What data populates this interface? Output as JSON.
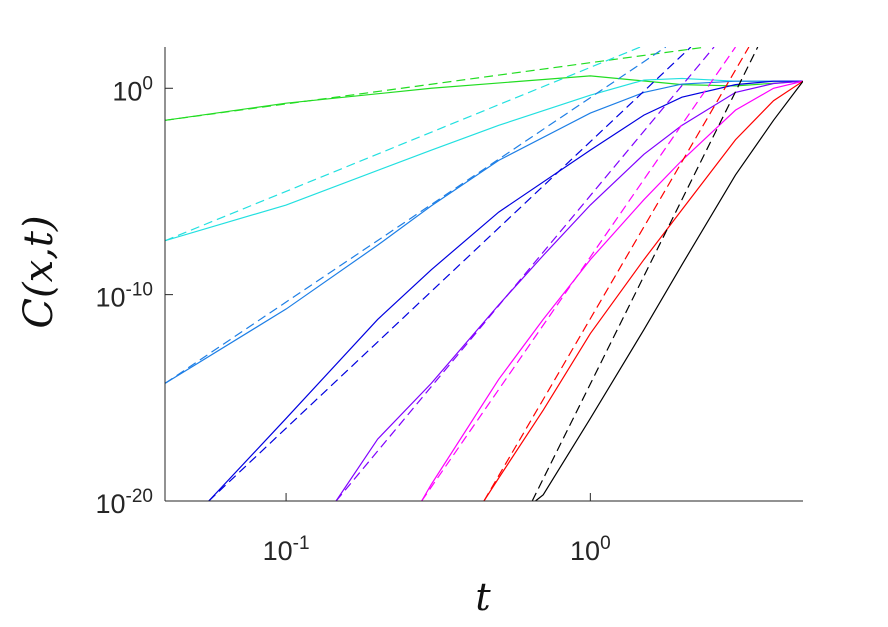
{
  "chart_data": {
    "type": "line",
    "xlabel": "t",
    "ylabel": "C(x,t)",
    "xscale": "log",
    "yscale": "log",
    "xlim": [
      0.04,
      5
    ],
    "ylim": [
      1e-20,
      100
    ],
    "xticks": [
      {
        "value": 0.1,
        "label": "10^-1"
      },
      {
        "value": 1,
        "label": "10^0"
      }
    ],
    "yticks": [
      {
        "value": 1e-20,
        "label": "10^-20"
      },
      {
        "value": 1e-10,
        "label": "10^-10"
      },
      {
        "value": 1,
        "label": "10^0"
      }
    ],
    "series": [
      {
        "color": "#22dd22",
        "line_style": "solid",
        "x": [
          0.04,
          0.1,
          0.3,
          1,
          2,
          3,
          5
        ],
        "values": [
          0.028,
          0.19,
          1,
          4,
          1.5,
          1.3,
          2.2
        ]
      },
      {
        "color": "#22e0e0",
        "line_style": "solid",
        "x": [
          0.04,
          0.1,
          0.3,
          0.5,
          1,
          1.5,
          2,
          3,
          5
        ],
        "values": [
          4.1e-08,
          2.2e-06,
          0.001,
          0.016,
          0.46,
          2.5,
          3,
          2.2,
          2.2
        ]
      },
      {
        "color": "#1e7fe6",
        "line_style": "solid",
        "x": [
          0.04,
          0.1,
          0.2,
          0.3,
          0.5,
          1,
          1.5,
          2,
          3,
          5
        ],
        "values": [
          5e-15,
          2e-11,
          2.5e-08,
          2e-06,
          0.00032,
          0.063,
          0.63,
          1.6,
          2.2,
          2.2
        ]
      },
      {
        "color": "#0000e0",
        "line_style": "solid",
        "x": [
          0.0557,
          0.1,
          0.2,
          0.3,
          0.5,
          1,
          1.5,
          2,
          3,
          4,
          5
        ],
        "values": [
          1e-20,
          1e-16,
          6.3e-12,
          1.6e-09,
          1e-06,
          0.001,
          0.05,
          0.37,
          1.5,
          2.2,
          2.2
        ]
      },
      {
        "color": "#8000ff",
        "line_style": "solid",
        "x": [
          0.146,
          0.2,
          0.3,
          0.5,
          0.7,
          1,
          1.5,
          2,
          3,
          4,
          5
        ],
        "values": [
          1e-20,
          1e-17,
          5e-15,
          3.2e-11,
          7.9e-09,
          2.2e-06,
          0.00063,
          0.016,
          0.63,
          1.7,
          2.2
        ]
      },
      {
        "color": "#ff00ff",
        "line_style": "solid",
        "x": [
          0.279,
          0.3,
          0.5,
          0.7,
          1,
          1.5,
          2,
          3,
          4,
          5
        ],
        "values": [
          1e-20,
          6.3e-20,
          7.9e-15,
          6.3e-12,
          5e-09,
          4e-06,
          0.00032,
          0.087,
          1,
          2.2
        ]
      },
      {
        "color": "#ff0000",
        "line_style": "solid",
        "x": [
          0.447,
          0.5,
          0.7,
          1,
          1.5,
          2,
          3,
          4,
          5
        ],
        "values": [
          1e-20,
          1.3e-19,
          2.5e-16,
          1.3e-12,
          5e-09,
          1.3e-06,
          0.0032,
          0.25,
          2.2
        ]
      },
      {
        "color": "#000000",
        "line_style": "solid",
        "x": [
          0.66,
          0.7,
          1,
          1.5,
          2,
          3,
          4,
          5
        ],
        "values": [
          1e-20,
          2e-20,
          1e-16,
          2e-12,
          2.8e-09,
          6.3e-05,
          0.028,
          2.2
        ]
      },
      {
        "color": "#22dd22",
        "line_style": "dashed",
        "x": [
          0.04,
          2.4
        ],
        "values": [
          0.028,
          100
        ]
      },
      {
        "color": "#22e0e0",
        "line_style": "dashed",
        "x": [
          0.04,
          1.46
        ],
        "values": [
          4.1e-08,
          100
        ]
      },
      {
        "color": "#1e7fe6",
        "line_style": "dashed",
        "x": [
          0.04,
          1.77
        ],
        "values": [
          5e-15,
          100
        ]
      },
      {
        "color": "#0000e0",
        "line_style": "dashed",
        "x": [
          0.0557,
          2.14
        ],
        "values": [
          1e-20,
          100
        ]
      },
      {
        "color": "#8000ff",
        "line_style": "dashed",
        "x": [
          0.146,
          2.55
        ],
        "values": [
          1e-20,
          100
        ]
      },
      {
        "color": "#ff00ff",
        "line_style": "dashed",
        "x": [
          0.279,
          3.0
        ],
        "values": [
          1e-20,
          100
        ]
      },
      {
        "color": "#ff0000",
        "line_style": "dashed",
        "x": [
          0.447,
          3.32
        ],
        "values": [
          1e-20,
          100
        ]
      },
      {
        "color": "#000000",
        "line_style": "dashed",
        "x": [
          0.644,
          3.55
        ],
        "values": [
          1e-20,
          100
        ]
      }
    ]
  }
}
